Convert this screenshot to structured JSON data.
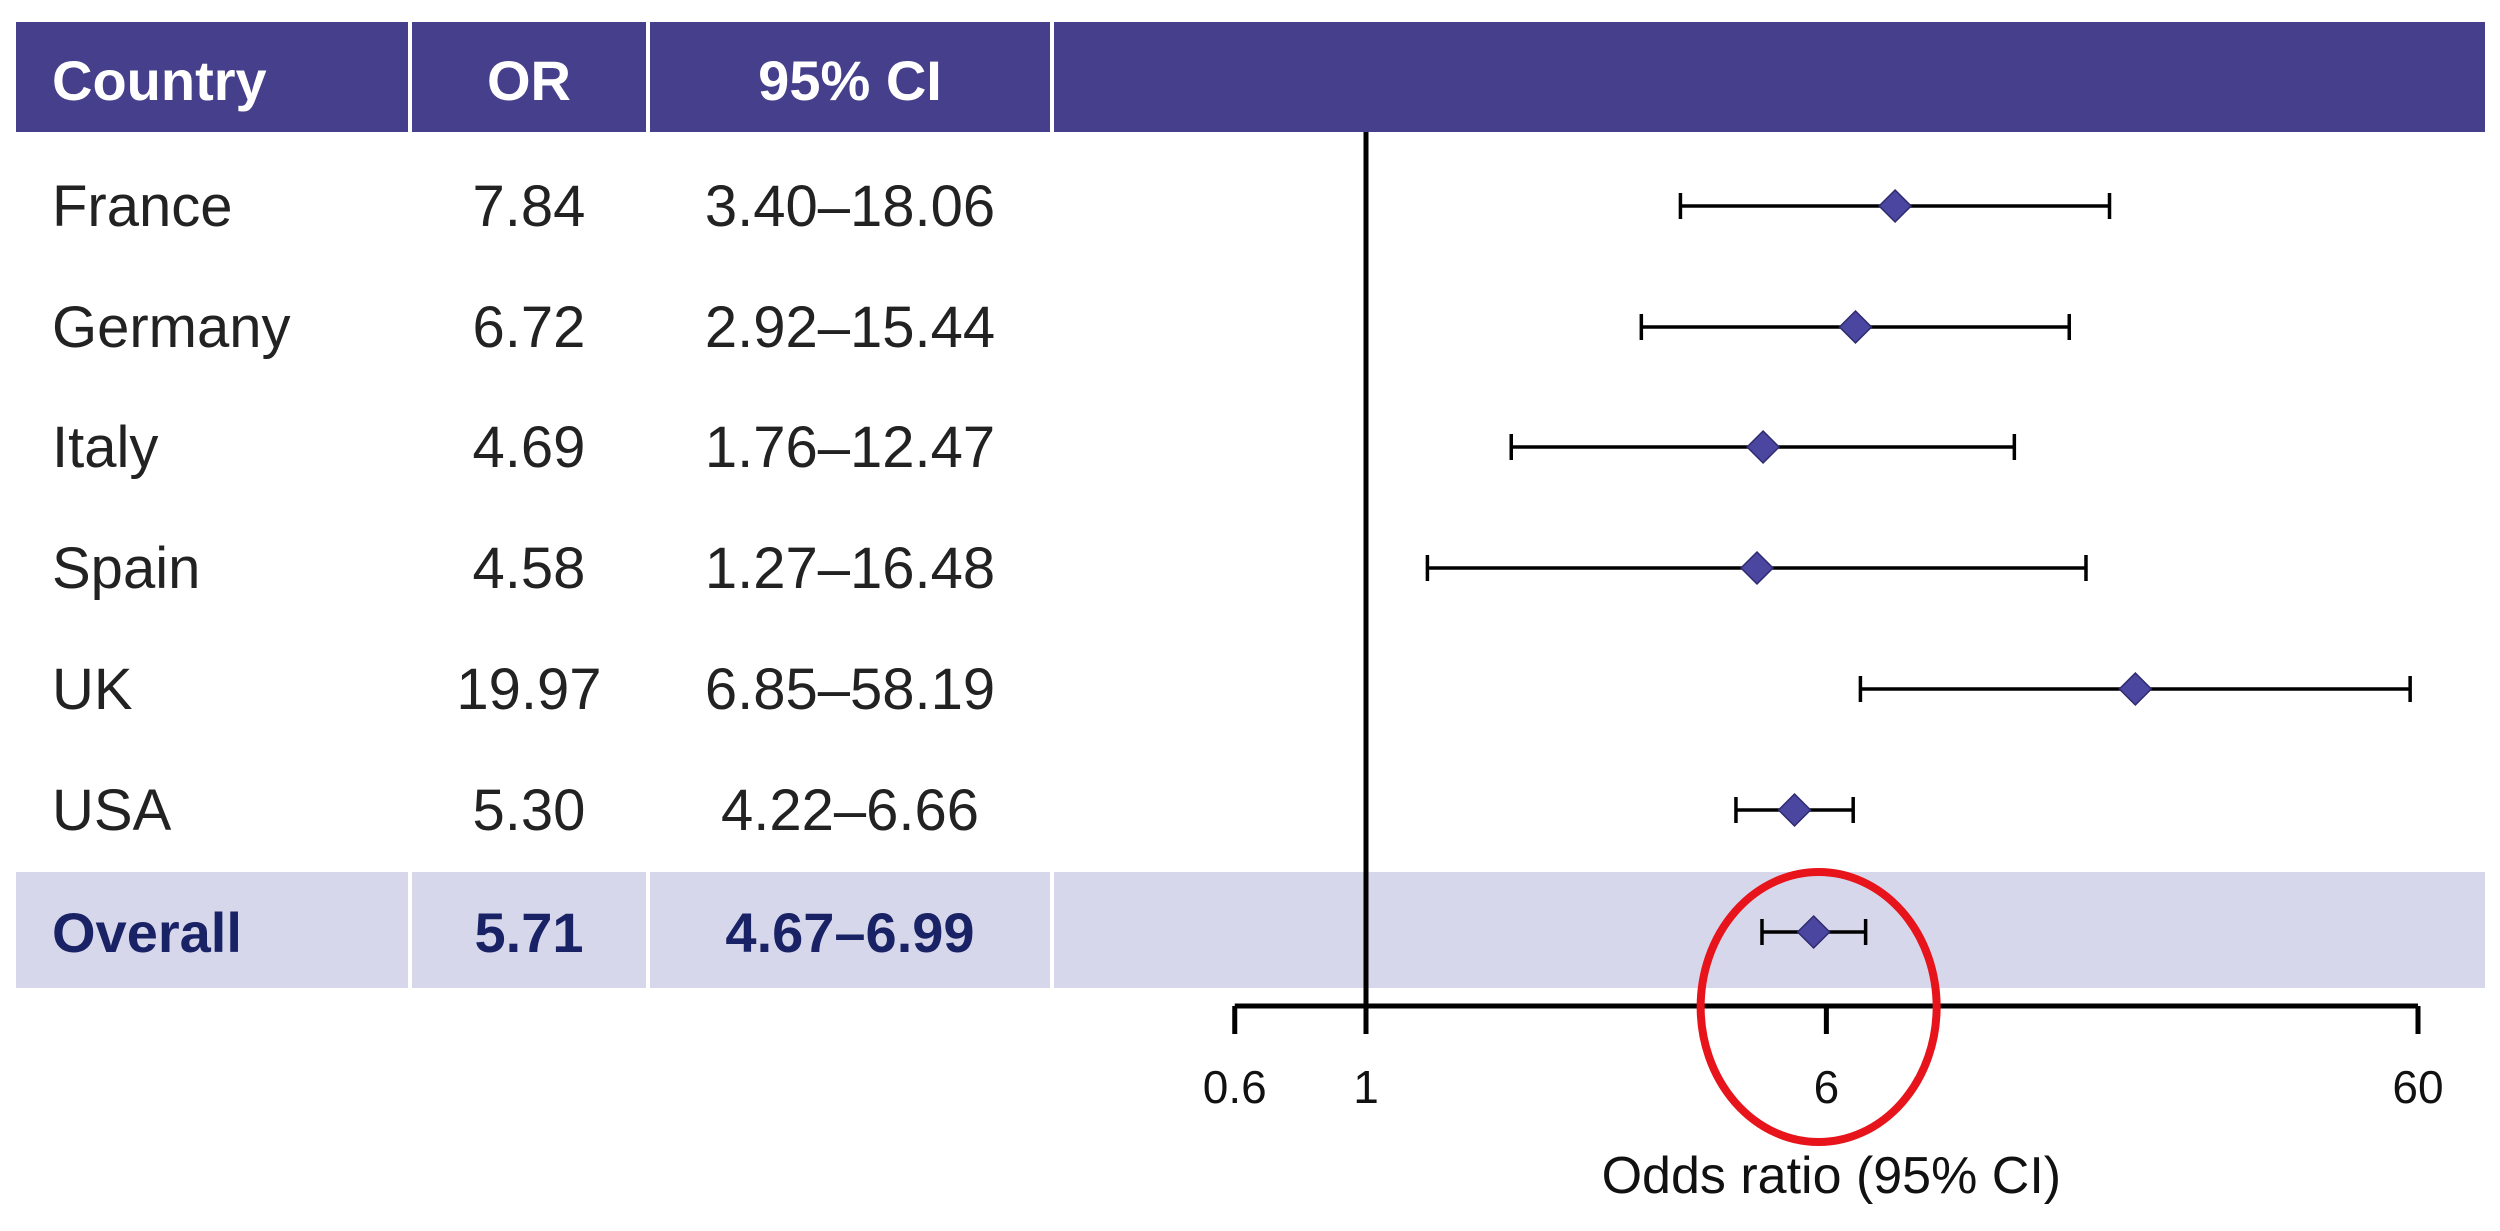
{
  "colors": {
    "header_bg": "#453f8c",
    "header_text": "#ffffff",
    "summary_bg": "#d7d7eb",
    "summary_text": "#1a2266",
    "marker": "#4b47a0",
    "highlight_circle": "#e8141b"
  },
  "table": {
    "headers": [
      "Country",
      "OR",
      "95% CI"
    ],
    "rows": [
      {
        "country": "France",
        "or": "7.84",
        "ci": "3.40–18.06"
      },
      {
        "country": "Germany",
        "or": "6.72",
        "ci": "2.92–15.44"
      },
      {
        "country": "Italy",
        "or": "4.69",
        "ci": "1.76–12.47"
      },
      {
        "country": "Spain",
        "or": "4.58",
        "ci": "1.27–16.48"
      },
      {
        "country": "UK",
        "or": "19.97",
        "ci": "6.85–58.19"
      },
      {
        "country": "USA",
        "or": "5.30",
        "ci": "4.22–6.66"
      }
    ],
    "summary": {
      "country": "Overall",
      "or": "5.71",
      "ci": "4.67–6.99"
    }
  },
  "chart_data": {
    "type": "scatter",
    "subtype": "forest-plot",
    "x_scale": "log",
    "xlim": [
      0.6,
      60
    ],
    "xticks": [
      0.6,
      1,
      6,
      60
    ],
    "xtick_labels": [
      "0.6",
      "1",
      "6",
      "60"
    ],
    "xlabel": "Odds ratio (95% CI)",
    "reference_line": 1,
    "categories": [
      "France",
      "Germany",
      "Italy",
      "Spain",
      "UK",
      "USA",
      "Overall"
    ],
    "or": [
      7.84,
      6.72,
      4.69,
      4.58,
      19.97,
      5.3,
      5.71
    ],
    "ci_low": [
      3.4,
      2.92,
      1.76,
      1.27,
      6.85,
      4.22,
      4.67
    ],
    "ci_high": [
      18.06,
      15.44,
      12.47,
      16.48,
      58.19,
      6.66,
      6.99
    ],
    "highlighted_category": "Overall"
  }
}
